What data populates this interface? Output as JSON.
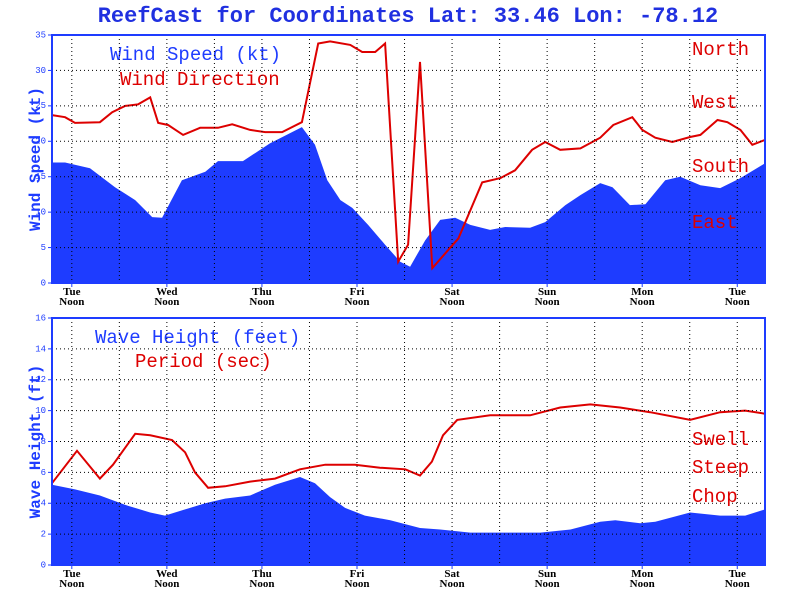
{
  "title": "ReefCast for Coordinates Lat: 33.46 Lon: -78.12",
  "chart_data": [
    {
      "type": "line",
      "ylabel": "Wind Speed (kt)",
      "xlim": [
        0,
        180
      ],
      "xticks": [
        {
          "value": 5,
          "label": "Tue Noon"
        },
        {
          "value": 29,
          "label": "Wed Noon"
        },
        {
          "value": 53,
          "label": "Thu Noon"
        },
        {
          "value": 77,
          "label": "Fri Noon"
        },
        {
          "value": 101,
          "label": "Sat Noon"
        },
        {
          "value": 125,
          "label": "Sun Noon"
        },
        {
          "value": 149,
          "label": "Mon Noon"
        },
        {
          "value": 173,
          "label": "Tue Noon"
        }
      ],
      "xminorticks": [
        17,
        41,
        65,
        89,
        113,
        137,
        161
      ],
      "ylim": [
        0,
        35
      ],
      "yticks": [
        0,
        5,
        10,
        15,
        20,
        25,
        30,
        35
      ],
      "grid": true,
      "annotations": [
        "North",
        "West",
        "South",
        "East"
      ],
      "series": [
        {
          "name": "Wind Speed (kt)",
          "type": "area",
          "color": "#1e3cff",
          "x": [
            0,
            3.3,
            9.6,
            15.9,
            21,
            25.3,
            27.8,
            32.8,
            38.7,
            41.9,
            48.2,
            55,
            63.1,
            66.4,
            69.5,
            72.8,
            75.8,
            79.8,
            84.1,
            87.9,
            90.4,
            94.2,
            98,
            101.8,
            105.6,
            110.6,
            114.4,
            120.7,
            124.5,
            129.6,
            133.4,
            138.4,
            141.5,
            145.9,
            149.8,
            154.8,
            158.6,
            163.7,
            168.7,
            173.8,
            180
          ],
          "values": [
            17,
            17,
            16.2,
            13.5,
            11.7,
            9.3,
            9.2,
            14.5,
            15.7,
            17.2,
            17.2,
            19.7,
            22,
            19.5,
            14.5,
            11.7,
            10.6,
            8.2,
            5.4,
            3,
            2.3,
            6,
            8.9,
            9.2,
            8.2,
            7.5,
            7.9,
            7.8,
            8.6,
            11,
            12.4,
            14.1,
            13.5,
            11,
            11.1,
            14.5,
            15,
            13.8,
            13.4,
            14.8,
            16.9
          ]
        },
        {
          "name": "Wind Direction",
          "type": "line",
          "color": "#dd0000",
          "x": [
            0,
            3.3,
            5.8,
            12.1,
            15.2,
            18.5,
            21.7,
            24.8,
            26.8,
            29.3,
            33.1,
            37.4,
            41.9,
            45.5,
            50,
            53.8,
            58.1,
            63.1,
            67.2,
            70.2,
            75.3,
            78.3,
            81.6,
            84.1,
            87.4,
            89.9,
            92.9,
            96,
            102.6,
            108.6,
            113.2,
            116.9,
            121.2,
            124.5,
            128.3,
            133.4,
            138.4,
            141.7,
            146.5,
            149,
            152.3,
            156.6,
            161.1,
            163.7,
            168,
            170.5,
            173.8,
            176.8,
            180
          ],
          "values": [
            23.7,
            23.4,
            22.6,
            22.7,
            24.1,
            25,
            25.2,
            26.2,
            22.6,
            22.3,
            20.9,
            21.9,
            21.9,
            22.4,
            21.6,
            21.3,
            21.3,
            22.7,
            33.8,
            34.1,
            33.6,
            32.6,
            32.6,
            33.8,
            3,
            5.4,
            31.2,
            2.1,
            6.3,
            14.2,
            14.8,
            15.9,
            18.8,
            19.9,
            18.8,
            19,
            20.5,
            22.3,
            23.4,
            21.6,
            20.5,
            19.9,
            20.6,
            20.9,
            23,
            22.7,
            21.6,
            19.5,
            20.2
          ]
        }
      ]
    },
    {
      "type": "line",
      "ylabel": "Wave Height (ft)",
      "xlim": [
        0,
        180
      ],
      "xticks": [
        {
          "value": 5,
          "label": "Tue Noon"
        },
        {
          "value": 29,
          "label": "Wed Noon"
        },
        {
          "value": 53,
          "label": "Thu Noon"
        },
        {
          "value": 77,
          "label": "Fri Noon"
        },
        {
          "value": 101,
          "label": "Sat Noon"
        },
        {
          "value": 125,
          "label": "Sun Noon"
        },
        {
          "value": 149,
          "label": "Mon Noon"
        },
        {
          "value": 173,
          "label": "Tue Noon"
        }
      ],
      "xminorticks": [
        17,
        41,
        65,
        89,
        113,
        137,
        161
      ],
      "ylim": [
        0,
        16
      ],
      "yticks": [
        0,
        2,
        4,
        6,
        8,
        10,
        12,
        14,
        16
      ],
      "grid": true,
      "annotations": [
        "Swell",
        "Steep",
        "Chop"
      ],
      "series": [
        {
          "name": "Wave Height (feet)",
          "type": "area",
          "color": "#1e3cff",
          "x": [
            0,
            5.8,
            12.1,
            18.4,
            24.8,
            28.5,
            33.6,
            38.7,
            43.7,
            50,
            56.3,
            62.6,
            66.4,
            70.2,
            74,
            79,
            85.4,
            92.9,
            98,
            105.6,
            113.2,
            123.3,
            130.9,
            138.4,
            142.2,
            148.5,
            152.3,
            161.1,
            168.7,
            175,
            180
          ],
          "values": [
            5.2,
            4.9,
            4.5,
            3.9,
            3.4,
            3.2,
            3.6,
            4,
            4.3,
            4.5,
            5.2,
            5.7,
            5.3,
            4.4,
            3.7,
            3.2,
            2.9,
            2.4,
            2.3,
            2.1,
            2.1,
            2.1,
            2.3,
            2.8,
            2.9,
            2.7,
            2.8,
            3.4,
            3.2,
            3.2,
            3.6
          ]
        },
        {
          "name": "Period (sec)",
          "type": "line",
          "color": "#dd0000",
          "x": [
            0,
            6.3,
            12.1,
            15.4,
            21,
            24.8,
            30.3,
            33.6,
            36.1,
            39.4,
            43.7,
            50,
            56.3,
            62.6,
            69,
            76.5,
            82.8,
            89.2,
            92.9,
            95.9,
            98.7,
            102.3,
            110.6,
            120.7,
            128.3,
            135.9,
            143.4,
            151,
            161.1,
            168.7,
            175,
            180
          ],
          "values": [
            5.3,
            7.4,
            5.6,
            6.5,
            8.5,
            8.4,
            8.1,
            7.3,
            6,
            5,
            5.1,
            5.4,
            5.6,
            6.2,
            6.5,
            6.5,
            6.3,
            6.2,
            5.8,
            6.7,
            8.4,
            9.4,
            9.7,
            9.7,
            10.2,
            10.4,
            10.2,
            9.9,
            9.4,
            9.9,
            10,
            9.8
          ]
        }
      ]
    }
  ]
}
